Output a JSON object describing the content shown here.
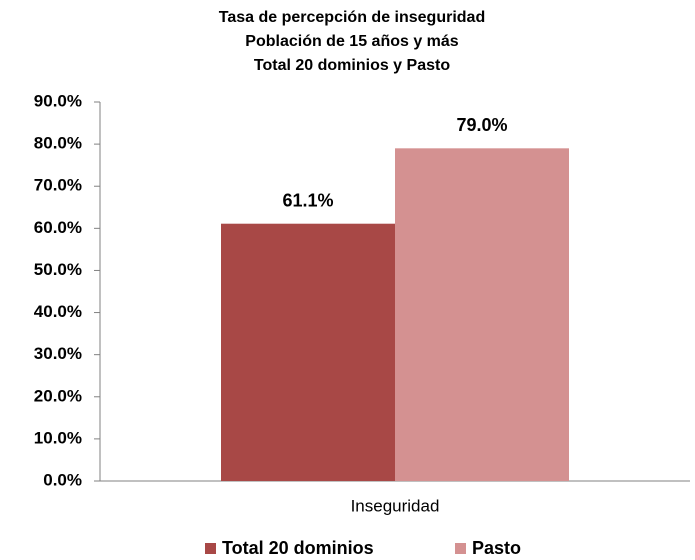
{
  "chart_data": {
    "type": "bar",
    "title": [
      "Tasa de percepción de inseguridad",
      "Población de 15 años y más",
      "Total 20 dominios y Pasto"
    ],
    "categories": [
      "Inseguridad"
    ],
    "series": [
      {
        "name": "Total 20 dominios",
        "color": "#a84846",
        "values": [
          61.1
        ],
        "value_labels": [
          "61.1%"
        ]
      },
      {
        "name": "Pasto",
        "color": "#d49191",
        "values": [
          79.0
        ],
        "value_labels": [
          "79.0%"
        ]
      }
    ],
    "ylim": [
      0,
      90
    ],
    "yticks": [
      {
        "value": 0,
        "label": "0.0%"
      },
      {
        "value": 10,
        "label": "10.0%"
      },
      {
        "value": 20,
        "label": "20.0%"
      },
      {
        "value": 30,
        "label": "30.0%"
      },
      {
        "value": 40,
        "label": "40.0%"
      },
      {
        "value": 50,
        "label": "50.0%"
      },
      {
        "value": 60,
        "label": "60.0%"
      },
      {
        "value": 70,
        "label": "70.0%"
      },
      {
        "value": 80,
        "label": "80.0%"
      },
      {
        "value": 90,
        "label": "90.0%"
      }
    ],
    "legend": "bottom",
    "grid": false
  }
}
